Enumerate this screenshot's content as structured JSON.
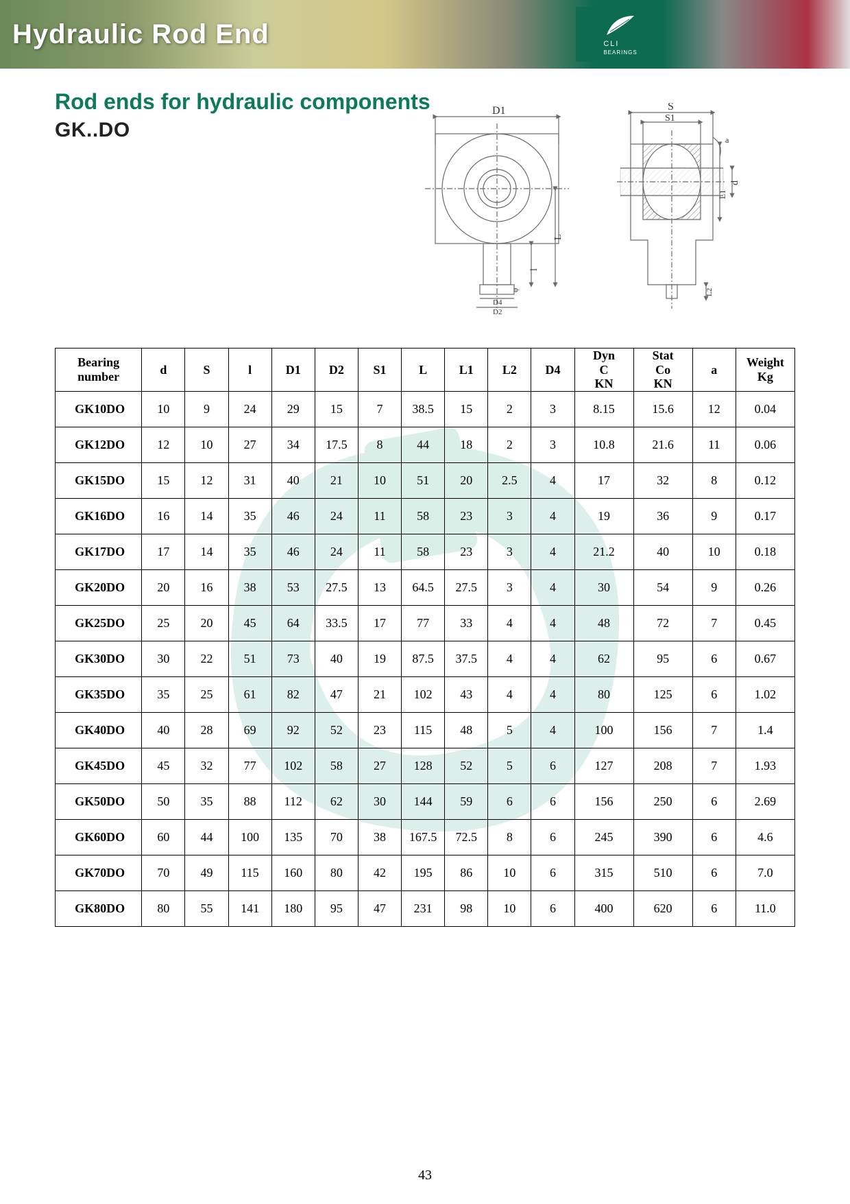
{
  "banner": {
    "title": "Hydraulic Rod End",
    "logo_text": "CLI",
    "logo_sub": "BEARINGS"
  },
  "heading": {
    "subtitle": "Rod ends for hydraulic components",
    "series_code": "GK..DO"
  },
  "diagram_labels": {
    "D1": "D1",
    "S": "S",
    "S1": "S1",
    "d": "d",
    "l": "l",
    "L": "L",
    "L2": "L2",
    "D4": "D4",
    "D2": "D2",
    "a": "a",
    "L1": "L1",
    "t_symbol": "φ"
  },
  "table": {
    "columns": [
      "Bearing number",
      "d",
      "S",
      "l",
      "D1",
      "D2",
      "S1",
      "L",
      "L1",
      "L2",
      "D4",
      "Dyn C KN",
      "Stat Co KN",
      "a",
      "Weight Kg"
    ],
    "col_widths_class": [
      "col-bn",
      "col-n",
      "col-n",
      "col-n",
      "col-n",
      "col-n",
      "col-n",
      "col-n",
      "col-n",
      "col-n",
      "col-n",
      "col-w",
      "col-w",
      "col-n",
      "col-w"
    ],
    "header_fontsize": 18,
    "cell_fontsize": 18,
    "border_color": "#000000",
    "rows": [
      [
        "GK10DO",
        10,
        9,
        24,
        29,
        15,
        7,
        38.5,
        15,
        2,
        3,
        8.15,
        15.6,
        12,
        0.04
      ],
      [
        "GK12DO",
        12,
        10,
        27,
        34,
        17.5,
        8,
        44,
        18,
        2,
        3,
        10.8,
        21.6,
        11,
        0.06
      ],
      [
        "GK15DO",
        15,
        12,
        31,
        40,
        21,
        10,
        51,
        20,
        2.5,
        4,
        17,
        32,
        8,
        0.12
      ],
      [
        "GK16DO",
        16,
        14,
        35,
        46,
        24,
        11,
        58,
        23,
        3,
        4,
        19,
        36,
        9,
        0.17
      ],
      [
        "GK17DO",
        17,
        14,
        35,
        46,
        24,
        11,
        58,
        23,
        3,
        4,
        21.2,
        40,
        10,
        0.18
      ],
      [
        "GK20DO",
        20,
        16,
        38,
        53,
        27.5,
        13,
        64.5,
        27.5,
        3,
        4,
        30,
        54,
        9,
        0.26
      ],
      [
        "GK25DO",
        25,
        20,
        45,
        64,
        33.5,
        17,
        77,
        33,
        4,
        4,
        48,
        72,
        7,
        0.45
      ],
      [
        "GK30DO",
        30,
        22,
        51,
        73,
        40,
        19,
        87.5,
        37.5,
        4,
        4,
        62,
        95,
        6,
        0.67
      ],
      [
        "GK35DO",
        35,
        25,
        61,
        82,
        47,
        21,
        102,
        43,
        4,
        4,
        80,
        125,
        6,
        1.02
      ],
      [
        "GK40DO",
        40,
        28,
        69,
        92,
        52,
        23,
        115,
        48,
        5,
        4,
        100,
        156,
        7,
        "1.4"
      ],
      [
        "GK45DO",
        45,
        32,
        77,
        102,
        58,
        27,
        128,
        52,
        5,
        6,
        127,
        208,
        7,
        1.93
      ],
      [
        "GK50DO",
        50,
        35,
        88,
        112,
        62,
        30,
        144,
        59,
        6,
        6,
        156,
        250,
        6,
        2.69
      ],
      [
        "GK60DO",
        60,
        44,
        100,
        135,
        70,
        38,
        167.5,
        72.5,
        8,
        6,
        245,
        390,
        6,
        "4.6"
      ],
      [
        "GK70DO",
        70,
        49,
        115,
        160,
        80,
        42,
        195,
        86,
        10,
        6,
        315,
        510,
        6,
        "7.0"
      ],
      [
        "GK80DO",
        80,
        55,
        141,
        180,
        95,
        47,
        231,
        98,
        10,
        6,
        400,
        620,
        6,
        "11.0"
      ]
    ]
  },
  "watermark": {
    "color": "#b9e0d5",
    "opacity": 0.5
  },
  "page_number": "43",
  "colors": {
    "accent_teal": "#0d7a5a",
    "banner_green": "#0d6b4f",
    "text_black": "#222222",
    "diagram_stroke": "#6a6a6a",
    "diagram_hatch": "#8a8a8a"
  }
}
